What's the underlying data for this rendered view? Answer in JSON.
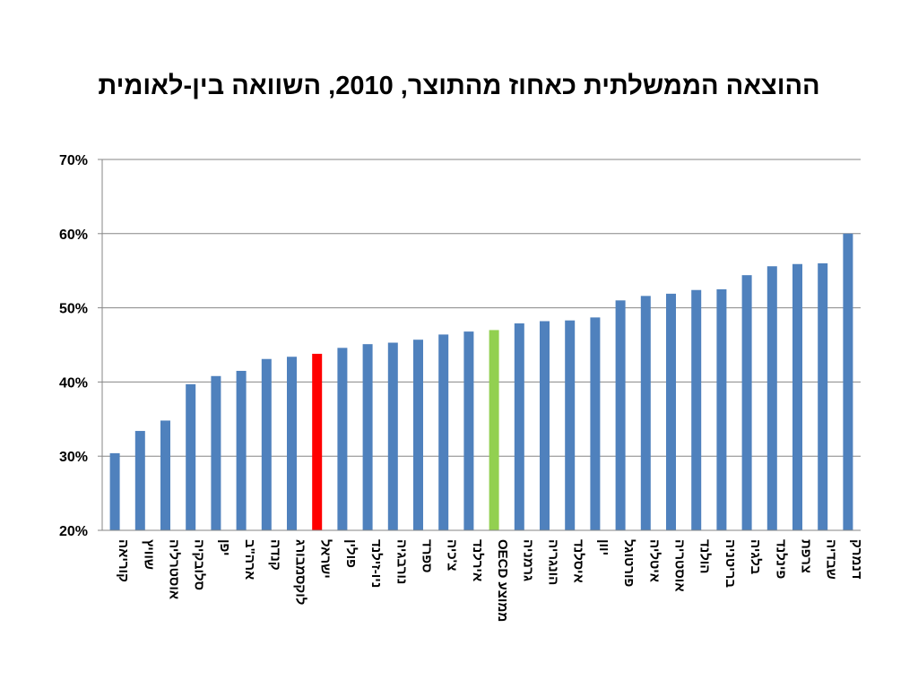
{
  "chart_data": {
    "type": "bar",
    "title": "ההוצאה הממשלתית כאחוז מהתוצר, 2010, השוואה בין-לאומית",
    "xlabel": "",
    "ylabel": "",
    "ylim": [
      20,
      70
    ],
    "yticks": [
      "20%",
      "30%",
      "40%",
      "50%",
      "60%",
      "70%"
    ],
    "ytick_values": [
      20,
      30,
      40,
      50,
      60,
      70
    ],
    "grid": true,
    "categories": [
      "קוריאה",
      "שוויץ",
      "אוסטרליה",
      "סלובקיה",
      "יפן",
      "ארה\"ב",
      "קנדה",
      "לוקסמבורג",
      "ישראל",
      "פולין",
      "ניו-זילנד",
      "נורבגיה",
      "ספרד",
      "צ'כיה",
      "אירלנד",
      "ממוצע OECD",
      "גרמניה",
      "הונגריה",
      "איסלנד",
      "יוון",
      "פורטוגל",
      "איטליה",
      "אוסטריה",
      "הולנד",
      "בריטניה",
      "בלגיה",
      "פינלנד",
      "צרפת",
      "שבדיה",
      "דנמרק"
    ],
    "values": [
      30.4,
      33.4,
      34.8,
      39.7,
      40.8,
      41.5,
      43.1,
      43.4,
      43.8,
      44.6,
      45.1,
      45.3,
      45.7,
      46.4,
      46.8,
      47.0,
      47.9,
      48.2,
      48.3,
      48.7,
      51.0,
      51.6,
      51.9,
      52.4,
      52.5,
      54.4,
      55.6,
      55.9,
      56.0,
      60.0
    ],
    "colors": {
      "default": "#4f81bd",
      "highlight_israel": "#ff0000",
      "highlight_oecd": "#92d050",
      "grid": "#868686"
    },
    "highlights": {
      "8": "highlight_israel",
      "15": "highlight_oecd"
    }
  }
}
